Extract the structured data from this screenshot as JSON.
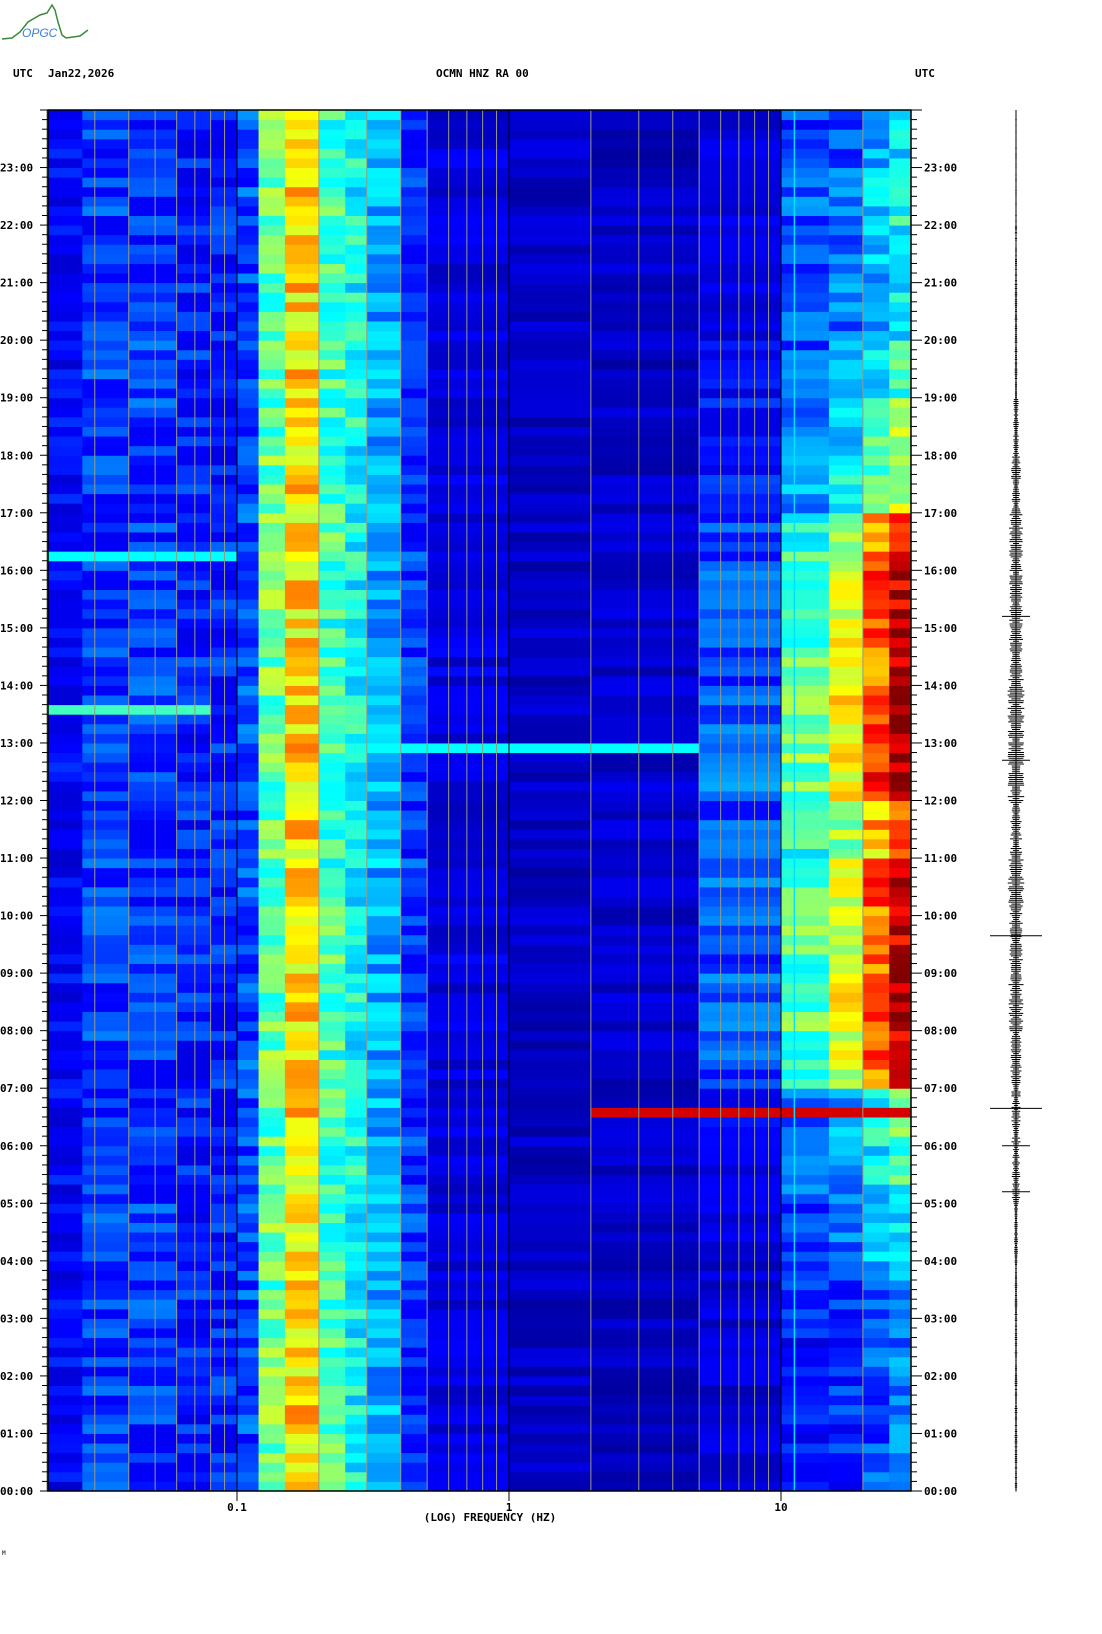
{
  "header": {
    "logo_text": "OPGC",
    "left_label": "UTC",
    "date": "Jan22,2026",
    "station": "OCMN HNZ RA 00",
    "right_label": "UTC"
  },
  "footer_mark": "M",
  "chart_data": {
    "type": "heatmap",
    "title": "OCMN HNZ RA 00",
    "xlabel": "(LOG) FREQUENCY (HZ)",
    "ylabel": "UTC",
    "x_scale": "log",
    "xlim": [
      0.02,
      30
    ],
    "ylim_hours": [
      0,
      24
    ],
    "x_tick_labels": [
      {
        "value": 0.1,
        "label": "0.1"
      },
      {
        "value": 1,
        "label": "1"
      },
      {
        "value": 10,
        "label": "10"
      }
    ],
    "y_tick_labels": [
      "00:00",
      "01:00",
      "02:00",
      "03:00",
      "04:00",
      "05:00",
      "06:00",
      "07:00",
      "08:00",
      "09:00",
      "10:00",
      "11:00",
      "12:00",
      "13:00",
      "14:00",
      "15:00",
      "16:00",
      "17:00",
      "18:00",
      "19:00",
      "20:00",
      "21:00",
      "22:00",
      "23:00"
    ],
    "colormap": "jet",
    "colormap_stops": [
      "#00008f",
      "#0000ff",
      "#00ffff",
      "#ffff00",
      "#ff0000",
      "#800000"
    ],
    "frequency_bin_edges": [
      0.02,
      0.027,
      0.04,
      0.06,
      0.08,
      0.1,
      0.12,
      0.15,
      0.2,
      0.25,
      0.3,
      0.4,
      0.5,
      1,
      2,
      5,
      10,
      15,
      20,
      25,
      30
    ],
    "base_intensity": [
      0.22,
      0.3,
      0.3,
      0.27,
      0.27,
      0.32,
      0.58,
      0.72,
      0.55,
      0.5,
      0.42,
      0.3,
      0.18,
      0.12,
      0.1,
      0.12,
      0.18,
      0.2,
      0.22,
      0.25
    ],
    "high_freq_weight": [
      0,
      0,
      0,
      0,
      0,
      0,
      0,
      0,
      0,
      0,
      0,
      0,
      0,
      0,
      0.05,
      0.25,
      0.45,
      0.55,
      0.7,
      0.8
    ],
    "hourly_high_freq_level": [
      0.15,
      0.15,
      0.15,
      0.18,
      0.3,
      0.35,
      0.4,
      0.85,
      0.9,
      0.85,
      0.85,
      0.75,
      0.9,
      0.9,
      0.85,
      0.85,
      0.8,
      0.5,
      0.45,
      0.35,
      0.3,
      0.3,
      0.35,
      0.25
    ],
    "events": [
      {
        "time_hours": 6.65,
        "freq_range": [
          4,
          30
        ],
        "intensity": 0.92
      },
      {
        "time_hours": 12.85,
        "freq_range": [
          0.35,
          3
        ],
        "intensity": 0.5
      },
      {
        "time_hours": 13.6,
        "freq_range": [
          0.02,
          0.065
        ],
        "intensity": 0.55
      },
      {
        "time_hours": 16.2,
        "freq_range": [
          0.02,
          0.1
        ],
        "intensity": 0.5
      }
    ],
    "trace_hourly_amplitude": [
      0.1,
      0.1,
      0.1,
      0.1,
      0.15,
      0.3,
      0.35,
      0.4,
      0.55,
      0.5,
      0.6,
      0.45,
      0.6,
      0.6,
      0.55,
      0.5,
      0.5,
      0.35,
      0.2,
      0.1,
      0.1,
      0.08,
      0.05,
      0.05
    ],
    "trace_spikes_hours": [
      6.65,
      9.65,
      12.7,
      15.2,
      5.2,
      6.0
    ]
  }
}
